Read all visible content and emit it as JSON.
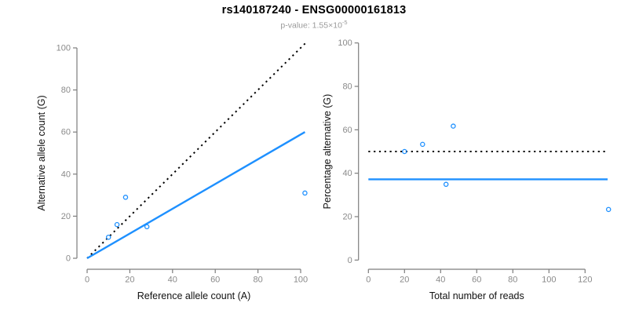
{
  "header": {
    "title": "rs140187240 - ENSG00000161813",
    "subtitle_prefix": "p-value: 1.55×10",
    "subtitle_exponent": "-5"
  },
  "colors": {
    "accent_blue": "#1E90FF",
    "dotted_line_black": "#000000",
    "axis_gray": "#7d7d7d",
    "tick_label_gray": "#8a8a8a",
    "axis_title_black": "#111111",
    "title_black": "#000000",
    "subtitle_gray": "#9a9a9a"
  },
  "chart_data": [
    {
      "type": "scatter",
      "name": "allele-counts-panel",
      "xlabel": "Reference allele count (A)",
      "ylabel": "Alternative allele count (G)",
      "xlim": [
        0,
        105
      ],
      "ylim": [
        0,
        103
      ],
      "xticks": [
        0,
        20,
        40,
        60,
        80,
        100
      ],
      "yticks": [
        0,
        20,
        40,
        60,
        80,
        100
      ],
      "grid": false,
      "legend": null,
      "points": [
        [
          10,
          10
        ],
        [
          14,
          16
        ],
        [
          18,
          29
        ],
        [
          28,
          15
        ],
        [
          102,
          31
        ]
      ],
      "lines": [
        {
          "name": "identity-line",
          "style": "dotted",
          "color_key": "dotted_line_black",
          "from": [
            0,
            0
          ],
          "to": [
            102.5,
            102.5
          ]
        },
        {
          "name": "fit-line",
          "style": "solid",
          "color_key": "accent_blue",
          "from": [
            0,
            0
          ],
          "to": [
            102,
            60
          ]
        }
      ]
    },
    {
      "type": "scatter",
      "name": "percentage-vs-reads-panel",
      "xlabel": "Total number of reads",
      "ylabel": "Percentage alternative (G)",
      "xlim": [
        0,
        135
      ],
      "ylim": [
        0,
        100
      ],
      "xticks": [
        0,
        20,
        40,
        60,
        80,
        100,
        120
      ],
      "yticks": [
        0,
        20,
        40,
        60,
        80,
        100
      ],
      "grid": false,
      "legend": null,
      "points": [
        [
          20,
          50
        ],
        [
          30,
          53.3
        ],
        [
          47,
          61.7
        ],
        [
          43,
          34.9
        ],
        [
          133,
          23.3
        ]
      ],
      "lines": [
        {
          "name": "expected-50pct-line",
          "style": "dotted",
          "color_key": "dotted_line_black",
          "from": [
            0,
            50
          ],
          "to": [
            132.5,
            50
          ]
        },
        {
          "name": "observed-mean-line",
          "style": "solid",
          "color_key": "accent_blue",
          "from": [
            0,
            37.2
          ],
          "to": [
            132.5,
            37.2
          ]
        }
      ]
    }
  ]
}
